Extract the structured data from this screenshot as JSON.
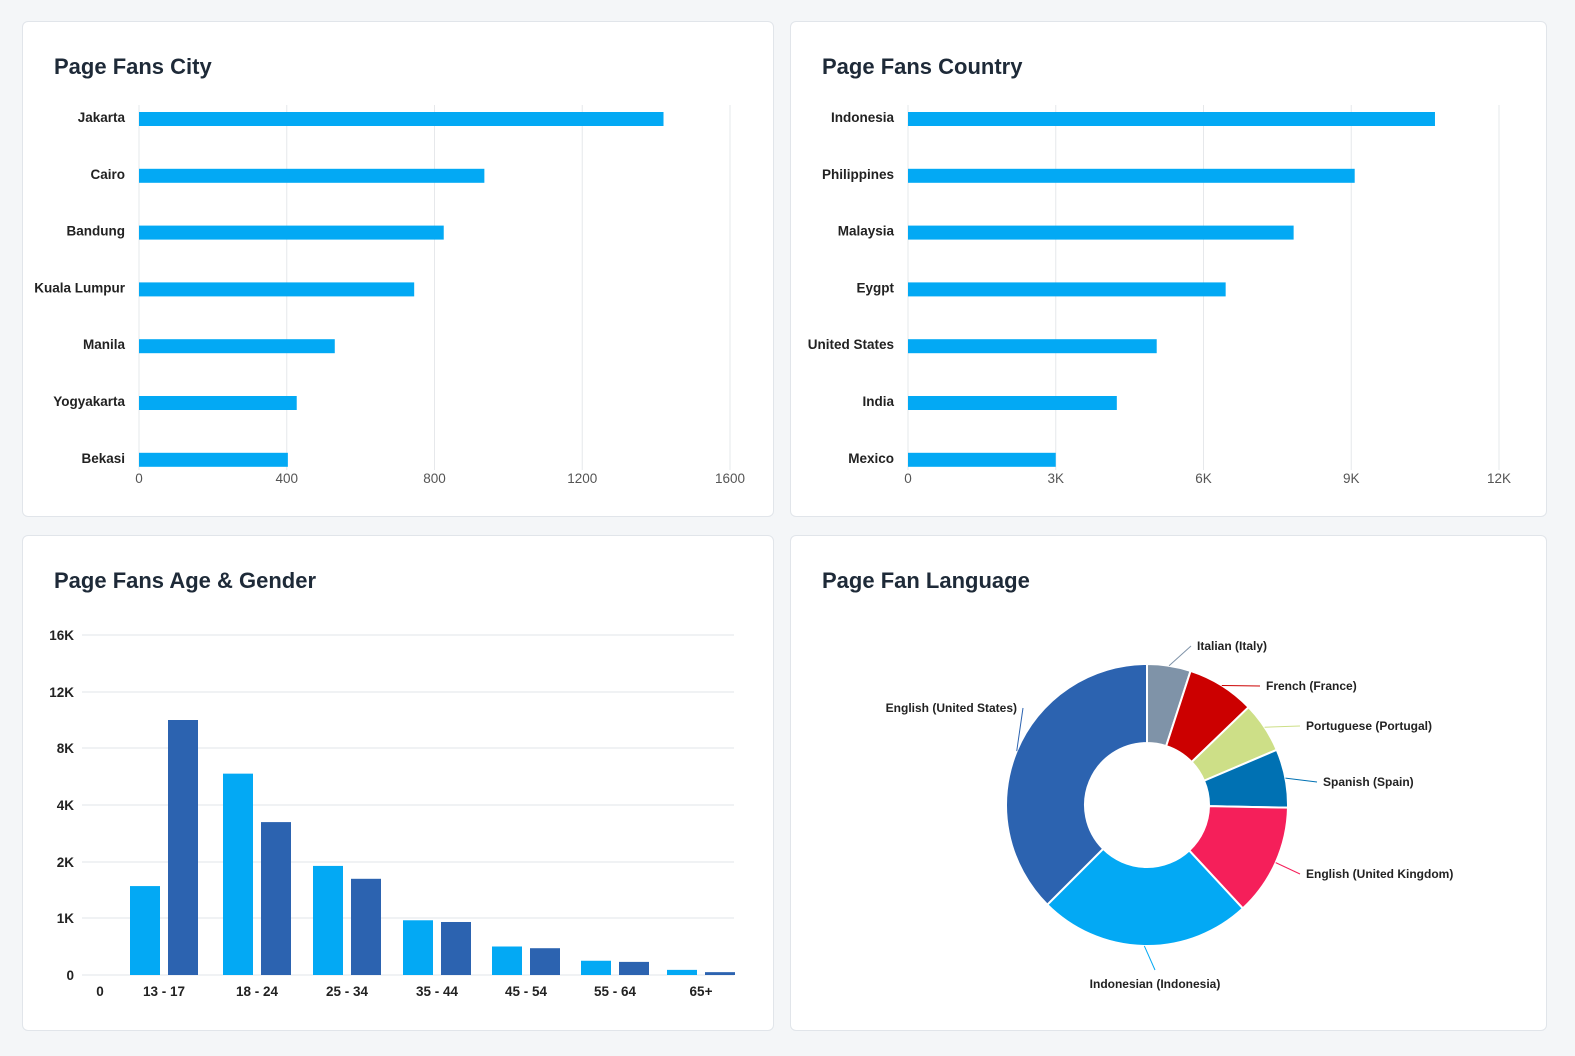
{
  "chart_data": [
    {
      "type": "bar",
      "orientation": "horizontal",
      "title": "Page Fans City",
      "categories": [
        "Jakarta",
        "Cairo",
        "Bandung",
        "Kuala Lumpur",
        "Manila",
        "Yogyakarta",
        "Bekasi"
      ],
      "values": [
        1420,
        935,
        825,
        745,
        530,
        427,
        403
      ],
      "xlim": [
        0,
        1600
      ],
      "xticks": [
        "0",
        "400",
        "800",
        "1200",
        "1600"
      ],
      "grid": true,
      "color": "#03a9f4"
    },
    {
      "type": "bar",
      "orientation": "horizontal",
      "title": "Page Fans Country",
      "categories": [
        "Indonesia",
        "Philippines",
        "Malaysia",
        "Eygpt",
        "United States",
        "India",
        "Mexico"
      ],
      "values": [
        10700,
        9070,
        7830,
        6450,
        5050,
        4240,
        3000
      ],
      "xlim": [
        0,
        12000
      ],
      "xticks": [
        "0",
        "3K",
        "6K",
        "9K",
        "12K"
      ],
      "grid": true,
      "color": "#03a9f4"
    },
    {
      "type": "bar",
      "title": "Page Fans Age & Gender",
      "categories": [
        "13 - 17",
        "18 - 24",
        "25 - 34",
        "35 - 44",
        "45 - 54",
        "55 - 64",
        "65+"
      ],
      "x_origin_label": "0",
      "series": [
        {
          "values": [
            1570,
            6200,
            1930,
            960,
            500,
            250,
            90
          ],
          "color": "#03a9f4"
        },
        {
          "values": [
            10000,
            3400,
            1700,
            930,
            470,
            230,
            50
          ],
          "color": "#2c63b0"
        }
      ],
      "yticks": [
        "0",
        "1K",
        "2K",
        "4K",
        "8K",
        "12K",
        "16K"
      ],
      "ytick_values": [
        0,
        1000,
        2000,
        4000,
        8000,
        12000,
        16000
      ],
      "grid": true
    },
    {
      "type": "pie",
      "donut": true,
      "title": "Page Fan Language",
      "labels": [
        "Italian (Italy)",
        "French (France)",
        "Portuguese (Portugal)",
        "Spanish (Spain)",
        "English (United Kingdom)",
        "Indonesian (Indonesia)",
        "English (United States)"
      ],
      "values": [
        5.0,
        7.8,
        5.8,
        6.7,
        12.8,
        24.4,
        37.5
      ],
      "colors": [
        "#7f93a8",
        "#cc0000",
        "#cddf87",
        "#0071b3",
        "#f51f5a",
        "#03a9f4",
        "#2c63b0"
      ]
    }
  ]
}
